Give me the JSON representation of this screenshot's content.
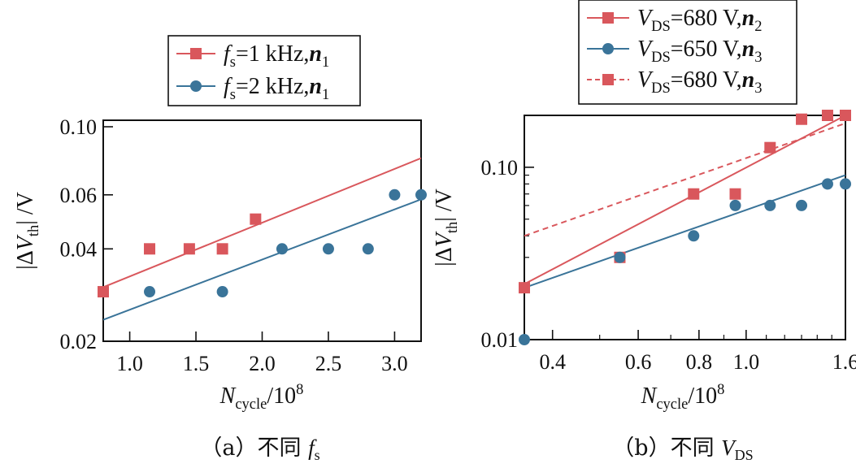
{
  "colors": {
    "red": "#d9575c",
    "blue": "#3a7499",
    "axis": "#111111"
  },
  "chart_data": [
    {
      "type": "scatter",
      "caption": {
        "prefix": "（a）不同 ",
        "sym": "f",
        "sub": "s"
      },
      "xlabel": {
        "sym": "N",
        "sub": "cycle",
        "rest": "/10",
        "sup": "8"
      },
      "ylabel": {
        "pre": "|Δ",
        "sym": "V",
        "sub": "th",
        "post": "| /V"
      },
      "xscale": "linear",
      "yscale": "log",
      "xlim": [
        0.8,
        3.2
      ],
      "ylim": [
        0.02,
        0.105
      ],
      "xticks": [
        1.0,
        1.5,
        2.0,
        2.5,
        3.0
      ],
      "xtick_labels": [
        "1.0",
        "1.5",
        "2.0",
        "2.5",
        "3.0"
      ],
      "yticks": [
        0.02,
        0.04,
        0.06,
        0.1
      ],
      "ytick_labels": [
        "0.02",
        "0.04",
        "0.06",
        "0.10"
      ],
      "legend_position": "above-center",
      "series": [
        {
          "name": {
            "sym": "f",
            "sub": "s",
            "mid": "=1 kHz,",
            "n": "n",
            "nsub": "1"
          },
          "color": "#d9575c",
          "marker": "square",
          "x": [
            0.8,
            1.15,
            1.45,
            1.7,
            1.95
          ],
          "y": [
            0.029,
            0.04,
            0.04,
            0.04,
            0.05
          ],
          "fit": {
            "x": [
              0.8,
              3.2
            ],
            "y": [
              0.03,
              0.079
            ]
          }
        },
        {
          "name": {
            "sym": "f",
            "sub": "s",
            "mid": "=2 kHz,",
            "n": "n",
            "nsub": "1"
          },
          "color": "#3a7499",
          "marker": "circle",
          "x": [
            1.15,
            1.7,
            2.15,
            2.5,
            2.8,
            3.0,
            3.2
          ],
          "y": [
            0.029,
            0.029,
            0.04,
            0.04,
            0.04,
            0.06,
            0.06
          ],
          "fit": {
            "x": [
              0.8,
              3.2
            ],
            "y": [
              0.0235,
              0.058
            ]
          }
        }
      ]
    },
    {
      "type": "scatter",
      "caption": {
        "prefix": "（b）不同 ",
        "sym": "V",
        "sub": "DS"
      },
      "xlabel": {
        "sym": "N",
        "sub": "cycle",
        "rest": "/10",
        "sup": "8"
      },
      "ylabel": {
        "pre": "|Δ",
        "sym": "V",
        "sub": "th",
        "post": "| /V"
      },
      "xscale": "log",
      "yscale": "log",
      "xlim": [
        0.35,
        1.6
      ],
      "ylim": [
        0.01,
        0.2
      ],
      "xticks": [
        0.4,
        0.6,
        0.8,
        1.0,
        1.6
      ],
      "xtick_labels": [
        "0.4",
        "0.6",
        "0.8",
        "1.0",
        "1.6"
      ],
      "yticks": [
        0.01,
        0.1
      ],
      "ytick_labels": [
        "0.01",
        "0.10"
      ],
      "legend_position": "above-center",
      "series": [
        {
          "name": {
            "sym": "V",
            "sub": "DS",
            "mid": "=680 V,",
            "n": "n",
            "nsub": "2"
          },
          "color": "#d9575c",
          "marker": "square",
          "line": "solid",
          "x": [
            0.35,
            0.55,
            0.78,
            0.95,
            1.12,
            1.3,
            1.47,
            1.6
          ],
          "y": [
            0.02,
            0.03,
            0.07,
            0.07,
            0.13,
            0.19,
            0.2,
            0.2
          ],
          "fit": {
            "x": [
              0.35,
              1.6
            ],
            "y": [
              0.021,
              0.2
            ]
          }
        },
        {
          "name": {
            "sym": "V",
            "sub": "DS",
            "mid": "=650 V,",
            "n": "n",
            "nsub": "3"
          },
          "color": "#3a7499",
          "marker": "circle",
          "line": "solid",
          "x": [
            0.35,
            0.55,
            0.78,
            0.95,
            1.12,
            1.3,
            1.47,
            1.6
          ],
          "y": [
            0.01,
            0.03,
            0.04,
            0.06,
            0.06,
            0.06,
            0.08,
            0.08
          ],
          "fit": {
            "x": [
              0.35,
              1.6
            ],
            "y": [
              0.02,
              0.09
            ]
          }
        },
        {
          "name": {
            "sym": "V",
            "sub": "DS",
            "mid": "=680 V,",
            "n": "n",
            "nsub": "3"
          },
          "color": "#d9575c",
          "marker": "square",
          "line": "dashed",
          "x": [],
          "y": [],
          "fit": {
            "x": [
              0.35,
              1.6
            ],
            "y": [
              0.04,
              0.18
            ]
          }
        }
      ]
    }
  ]
}
